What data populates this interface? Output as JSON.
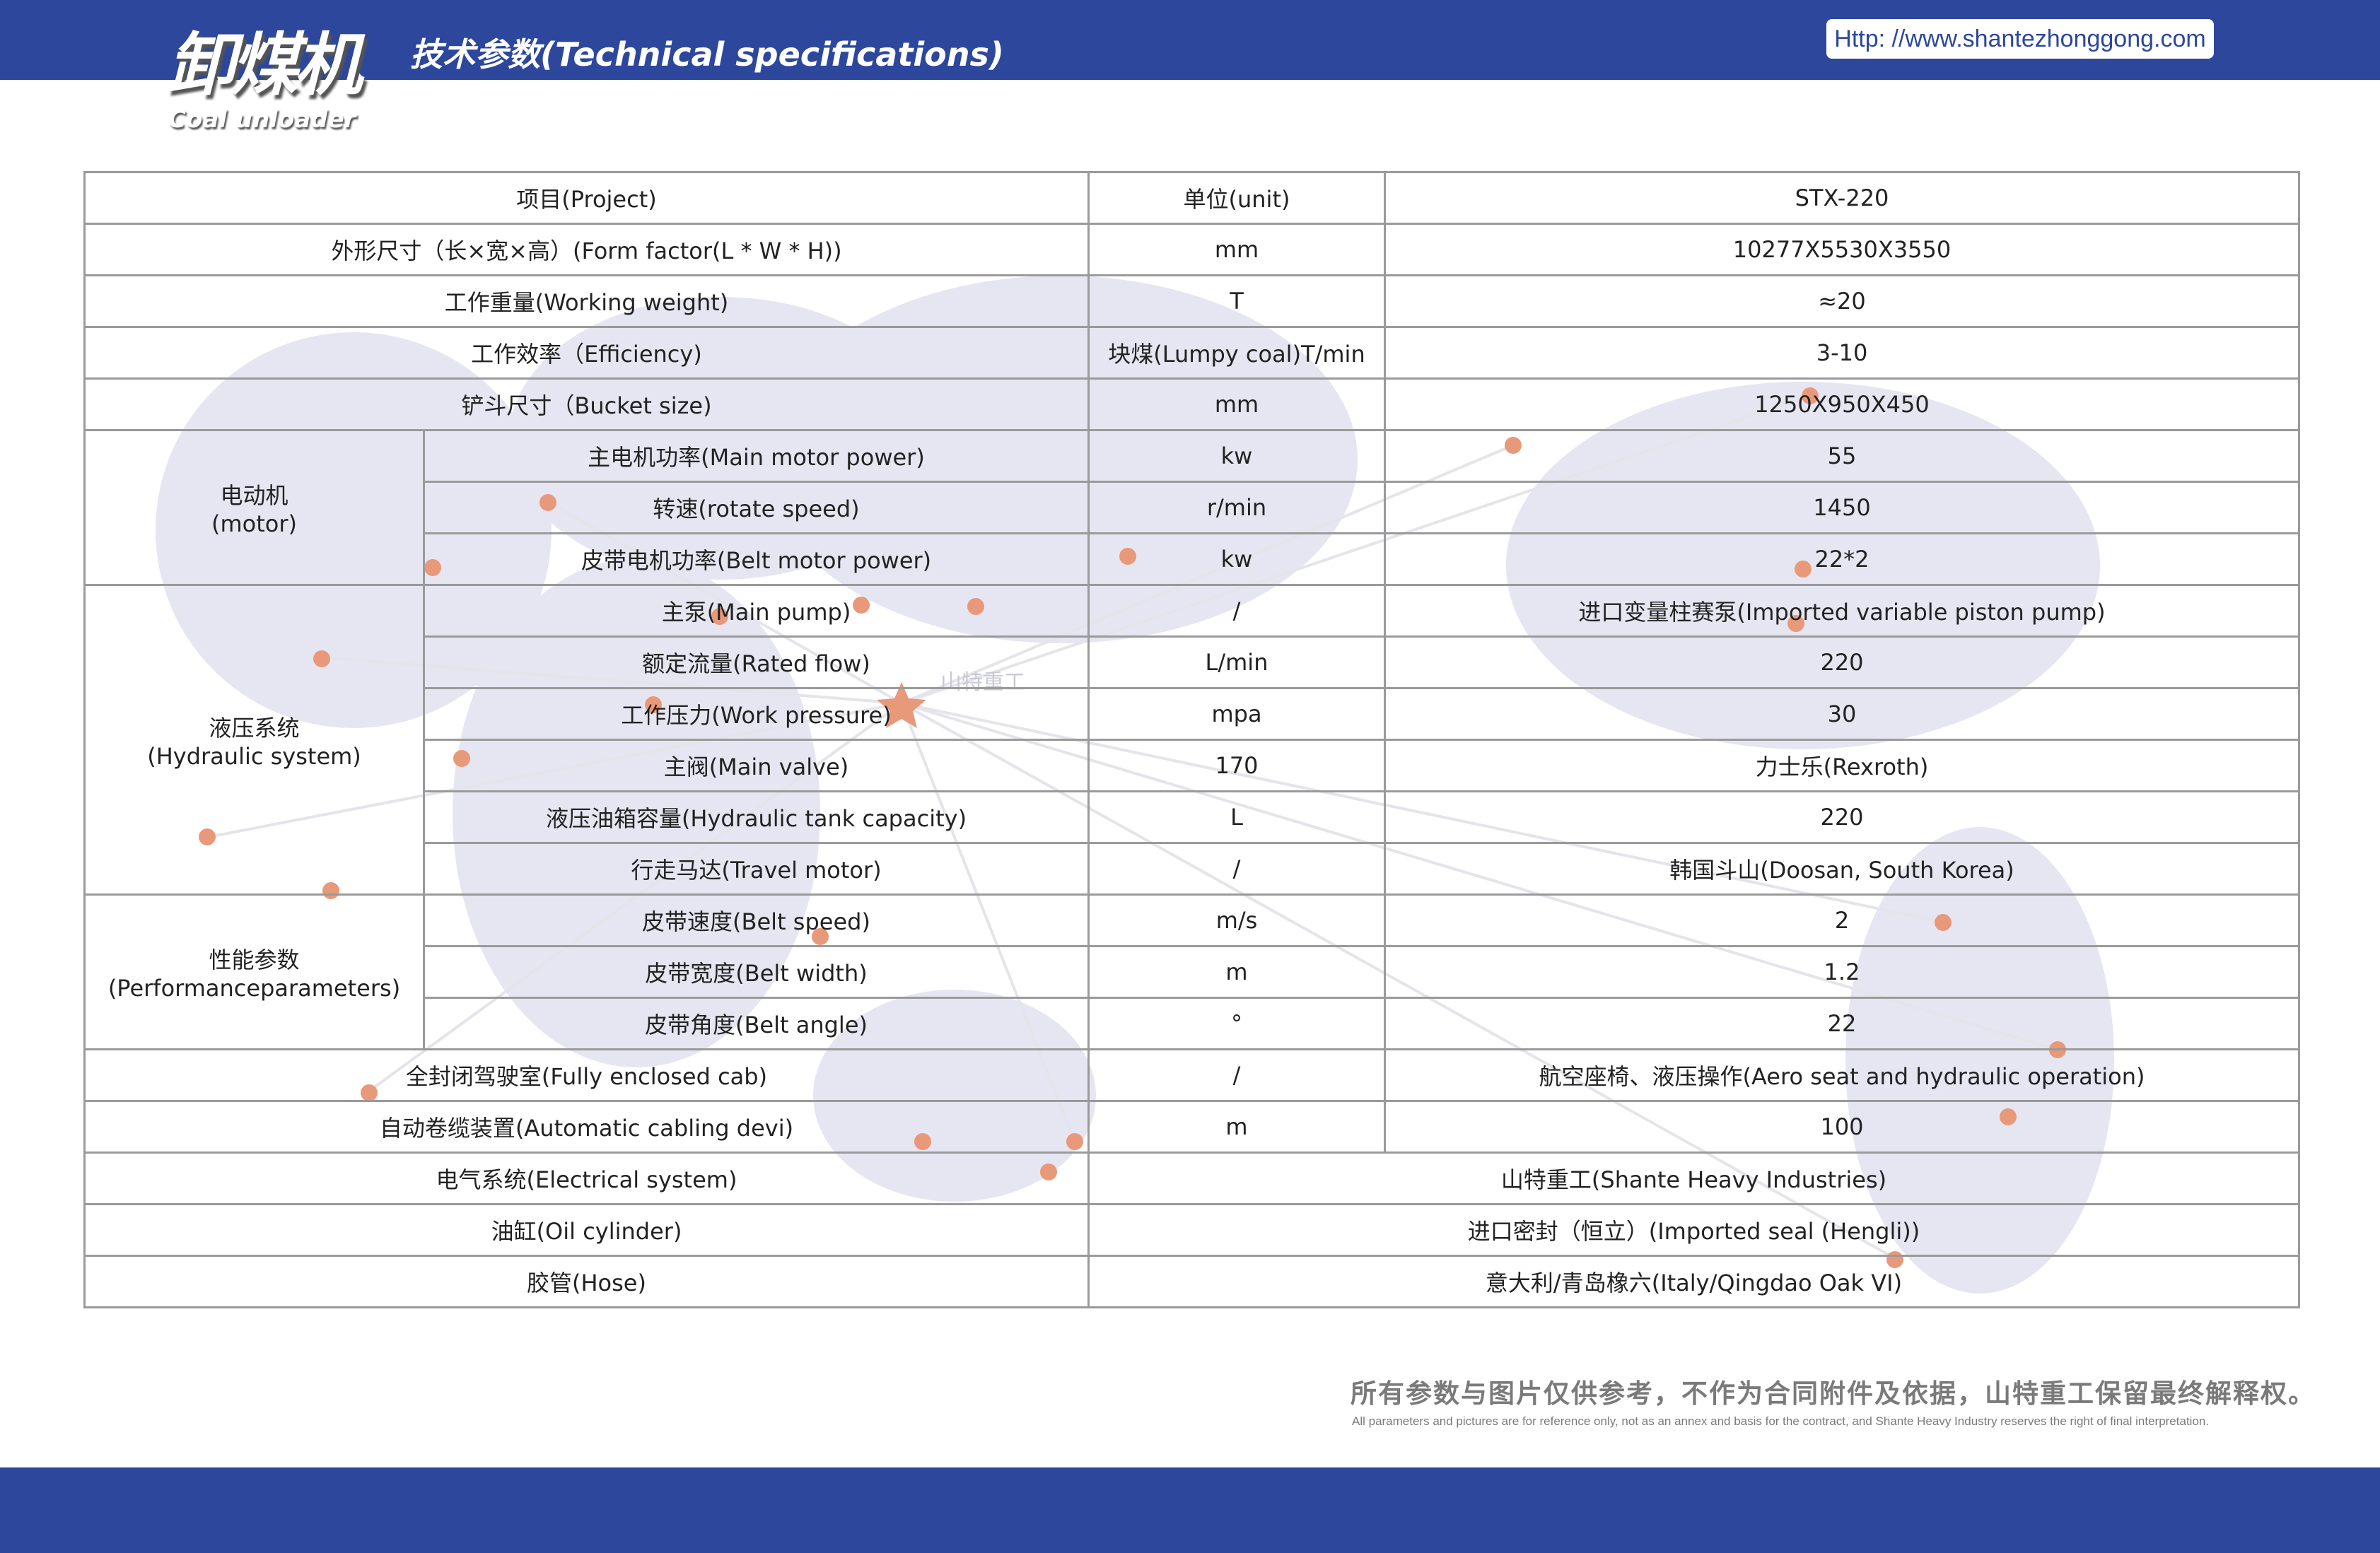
{
  "header": {
    "logo_cn": "卸煤机",
    "logo_en": "Coal unloader",
    "title": "技术参数(Technical specifications)",
    "url": "Http: //www.shantezhonggong.com",
    "brand_color": "#2c479c"
  },
  "map": {
    "watermark": "山特重工",
    "dot_color": "#e8997a",
    "land_color": "#e6e6f2"
  },
  "table": {
    "header": [
      "项目(Project)",
      "单位(unit)",
      "STX-220"
    ],
    "rows": [
      {
        "label": "外形尺寸（长×宽×高）(Form factor(L * W * H))",
        "unit": "mm",
        "value": "10277X5530X3550"
      },
      {
        "label": "工作重量(Working weight)",
        "unit": "T",
        "value": "≈20"
      },
      {
        "label": "工作效率（Efficiency)",
        "unit": "块煤(Lumpy coal)T/min",
        "value": "3-10"
      },
      {
        "label": "铲斗尺寸（Bucket size)",
        "unit": "mm",
        "value": "1250X950X450"
      },
      {
        "group": "电动机\n(motor)",
        "items": [
          {
            "label": "主电机功率(Main motor power)",
            "unit": "kw",
            "value": "55"
          },
          {
            "label": "转速(rotate speed)",
            "unit": "r/min",
            "value": "1450"
          },
          {
            "label": "皮带电机功率(Belt motor power)",
            "unit": "kw",
            "value": "22*2"
          }
        ]
      },
      {
        "group": "液压系统\n(Hydraulic system)",
        "items": [
          {
            "label": "主泵(Main pump)",
            "unit": "/",
            "value": "进口变量柱赛泵(Imported variable piston pump)"
          },
          {
            "label": "额定流量(Rated flow)",
            "unit": "L/min",
            "value": "220"
          },
          {
            "label": "工作压力(Work pressure)",
            "unit": "mpa",
            "value": "30"
          },
          {
            "label": "主阀(Main valve)",
            "unit": "170",
            "value": "力士乐(Rexroth)"
          },
          {
            "label": "液压油箱容量(Hydraulic tank capacity)",
            "unit": "L",
            "value": "220"
          },
          {
            "label": "行走马达(Travel motor)",
            "unit": "/",
            "value": "韩国斗山(Doosan, South Korea)"
          }
        ]
      },
      {
        "group": "性能参数\n(Performanceparameters)",
        "items": [
          {
            "label": "皮带速度(Belt speed)",
            "unit": "m/s",
            "value": "2"
          },
          {
            "label": "皮带宽度(Belt width)",
            "unit": "m",
            "value": "1.2"
          },
          {
            "label": "皮带角度(Belt angle)",
            "unit": "°",
            "value": "22"
          }
        ]
      },
      {
        "label": "全封闭驾驶室(Fully enclosed cab)",
        "unit": "/",
        "value": "航空座椅、液压操作(Aero seat and hydraulic operation)"
      },
      {
        "label": "自动卷缆装置(Automatic cabling devi)",
        "unit": "m",
        "value": "100"
      },
      {
        "label": "电气系统(Electrical system)",
        "merged": "山特重工(Shante Heavy Industries)"
      },
      {
        "label": "油缸(Oil cylinder)",
        "merged": "进口密封（恒立）(Imported seal (Hengli))"
      },
      {
        "label": "胶管(Hose)",
        "merged": "意大利/青岛橡六(Italy/Qingdao Oak VI)"
      }
    ]
  },
  "footer": {
    "disclaimer_cn": "所有参数与图片仅供参考，不作为合同附件及依据，山特重工保留最终解释权。",
    "disclaimer_en": "All parameters and pictures are for reference only, not as an annex and basis for the contract, and Shante Heavy Industry reserves the right of final interpretation."
  }
}
